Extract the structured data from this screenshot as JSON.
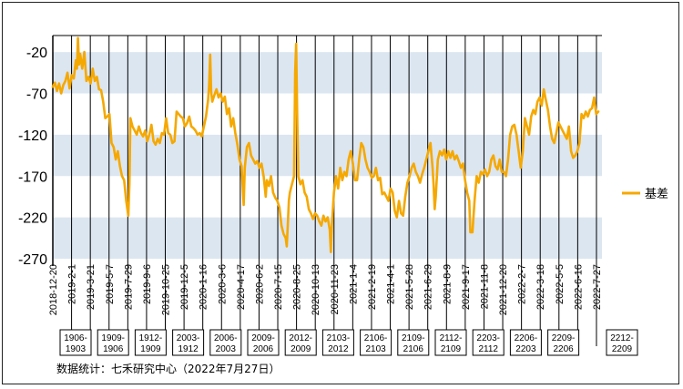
{
  "chart_data": {
    "type": "line",
    "title": "",
    "xlabel": "",
    "ylabel": "",
    "ylim": [
      -270,
      0
    ],
    "y_ticks": [
      -20,
      -70,
      -120,
      -170,
      -220,
      -270
    ],
    "x_tick_labels": [
      "2018-12-20",
      "2019-2-1",
      "2019-3-21",
      "2019-5-7",
      "2019-7-29",
      "2019-9-6",
      "2019-10-25",
      "2019-12-5",
      "2020-1-16",
      "2020-3-6",
      "2020-4-17",
      "2020-6-2",
      "2020-7-15",
      "2020-8-25",
      "2020-10-13",
      "2020-11-23",
      "2021-1-4",
      "2021-2-19",
      "2021-4-1",
      "2021-5-28",
      "2021-6-29",
      "2021-8-9",
      "2021-9-17",
      "2021-11-8",
      "2021-12-20",
      "2022-2-7",
      "2022-3-18",
      "2022-5-5",
      "2022-6-16",
      "2022-7-27"
    ],
    "bands": [
      [
        -20,
        -70
      ],
      [
        -120,
        -170
      ],
      [
        -220,
        -270
      ]
    ],
    "grid": false,
    "legend": "right",
    "series": [
      {
        "name": "基差",
        "color": "#F5A800",
        "points": [
          [
            0,
            -62
          ],
          [
            0.4,
            -57
          ],
          [
            0.8,
            -67
          ],
          [
            1.2,
            -58
          ],
          [
            1.6,
            -70
          ],
          [
            2.0,
            -60
          ],
          [
            2.4,
            -55
          ],
          [
            2.8,
            -45
          ],
          [
            3.2,
            -64
          ],
          [
            3.6,
            -48
          ],
          [
            4.0,
            -52
          ],
          [
            4.4,
            -30
          ],
          [
            4.6,
            -40
          ],
          [
            4.8,
            -3
          ],
          [
            5.0,
            -35
          ],
          [
            5.2,
            -22
          ],
          [
            5.6,
            -40
          ],
          [
            6.0,
            -20
          ],
          [
            6.4,
            -55
          ],
          [
            6.8,
            -50
          ],
          [
            7.2,
            -58
          ],
          [
            7.6,
            -40
          ],
          [
            8.0,
            -55
          ],
          [
            8.4,
            -50
          ],
          [
            8.8,
            -65
          ],
          [
            9.2,
            -66
          ],
          [
            9.6,
            -80
          ],
          [
            10.0,
            -100
          ],
          [
            10.4,
            -98
          ],
          [
            10.8,
            -95
          ],
          [
            11.2,
            -130
          ],
          [
            11.6,
            -135
          ],
          [
            12.0,
            -150
          ],
          [
            12.4,
            -140
          ],
          [
            12.8,
            -158
          ],
          [
            13.2,
            -170
          ],
          [
            13.6,
            -175
          ],
          [
            14.0,
            -200
          ],
          [
            14.4,
            -218
          ],
          [
            14.6,
            -180
          ],
          [
            14.8,
            -100
          ],
          [
            15.2,
            -110
          ],
          [
            15.6,
            -115
          ],
          [
            16.0,
            -120
          ],
          [
            16.4,
            -110
          ],
          [
            16.8,
            -118
          ],
          [
            17.2,
            -122
          ],
          [
            17.6,
            -115
          ],
          [
            18.0,
            -128
          ],
          [
            18.4,
            -120
          ],
          [
            18.8,
            -108
          ],
          [
            19.2,
            -128
          ],
          [
            19.6,
            -132
          ],
          [
            20.0,
            -125
          ],
          [
            20.4,
            -130
          ],
          [
            20.8,
            -118
          ],
          [
            21.2,
            -120
          ],
          [
            21.6,
            -100
          ],
          [
            22.0,
            -118
          ],
          [
            22.4,
            -120
          ],
          [
            22.8,
            -130
          ],
          [
            23.2,
            -128
          ],
          [
            23.6,
            -92
          ],
          [
            24.0,
            -95
          ],
          [
            24.4,
            -98
          ],
          [
            24.8,
            -100
          ],
          [
            25.2,
            -110
          ],
          [
            25.6,
            -106
          ],
          [
            26.0,
            -98
          ],
          [
            26.4,
            -110
          ],
          [
            26.8,
            -112
          ],
          [
            27.2,
            -115
          ],
          [
            27.6,
            -120
          ],
          [
            28.0,
            -118
          ],
          [
            28.4,
            -122
          ],
          [
            28.8,
            -110
          ],
          [
            29.2,
            -98
          ],
          [
            29.6,
            -78
          ],
          [
            29.8,
            -60
          ],
          [
            30.0,
            -23
          ],
          [
            30.2,
            -68
          ],
          [
            30.4,
            -80
          ],
          [
            30.8,
            -72
          ],
          [
            31.2,
            -65
          ],
          [
            31.6,
            -75
          ],
          [
            32.0,
            -70
          ],
          [
            32.4,
            -80
          ],
          [
            32.8,
            -74
          ],
          [
            33.2,
            -95
          ],
          [
            33.6,
            -88
          ],
          [
            34.0,
            -110
          ],
          [
            34.4,
            -100
          ],
          [
            34.8,
            -118
          ],
          [
            35.2,
            -132
          ],
          [
            35.6,
            -150
          ],
          [
            36.0,
            -158
          ],
          [
            36.4,
            -205
          ],
          [
            36.6,
            -160
          ],
          [
            37.0,
            -135
          ],
          [
            37.4,
            -130
          ],
          [
            37.8,
            -145
          ],
          [
            38.2,
            -150
          ],
          [
            38.6,
            -155
          ],
          [
            39.0,
            -152
          ],
          [
            39.4,
            -160
          ],
          [
            39.8,
            -155
          ],
          [
            40.2,
            -170
          ],
          [
            40.6,
            -195
          ],
          [
            40.8,
            -175
          ],
          [
            41.2,
            -182
          ],
          [
            41.6,
            -170
          ],
          [
            42.0,
            -190
          ],
          [
            42.4,
            -196
          ],
          [
            42.8,
            -200
          ],
          [
            43.2,
            -208
          ],
          [
            43.6,
            -230
          ],
          [
            44.0,
            -240
          ],
          [
            44.4,
            -245
          ],
          [
            44.6,
            -255
          ],
          [
            44.8,
            -230
          ],
          [
            45.0,
            -200
          ],
          [
            45.2,
            -190
          ],
          [
            45.6,
            -180
          ],
          [
            46.0,
            -170
          ],
          [
            46.2,
            -45
          ],
          [
            46.4,
            -10
          ],
          [
            46.6,
            -100
          ],
          [
            46.8,
            -170
          ],
          [
            47.2,
            -180
          ],
          [
            47.6,
            -175
          ],
          [
            48.0,
            -190
          ],
          [
            48.4,
            -195
          ],
          [
            48.8,
            -210
          ],
          [
            49.2,
            -215
          ],
          [
            49.6,
            -222
          ],
          [
            50.0,
            -215
          ],
          [
            50.4,
            -218
          ],
          [
            50.8,
            -225
          ],
          [
            51.2,
            -230
          ],
          [
            51.6,
            -218
          ],
          [
            52.0,
            -225
          ],
          [
            52.4,
            -220
          ],
          [
            52.8,
            -235
          ],
          [
            53.0,
            -262
          ],
          [
            53.2,
            -230
          ],
          [
            53.6,
            -190
          ],
          [
            54.0,
            -170
          ],
          [
            54.4,
            -185
          ],
          [
            54.8,
            -160
          ],
          [
            55.2,
            -175
          ],
          [
            55.6,
            -165
          ],
          [
            56.0,
            -170
          ],
          [
            56.4,
            -150
          ],
          [
            56.8,
            -140
          ],
          [
            57.2,
            -155
          ],
          [
            57.6,
            -175
          ],
          [
            58.0,
            -175
          ],
          [
            58.4,
            -150
          ],
          [
            58.8,
            -130
          ],
          [
            59.2,
            -135
          ],
          [
            59.6,
            -150
          ],
          [
            60.0,
            -160
          ],
          [
            60.4,
            -165
          ],
          [
            60.8,
            -172
          ],
          [
            61.2,
            -170
          ],
          [
            61.6,
            -160
          ],
          [
            62.0,
            -175
          ],
          [
            62.4,
            -172
          ],
          [
            62.8,
            -192
          ],
          [
            63.2,
            -190
          ],
          [
            63.6,
            -195
          ],
          [
            64.0,
            -200
          ],
          [
            64.4,
            -185
          ],
          [
            64.8,
            -190
          ],
          [
            65.2,
            -212
          ],
          [
            65.6,
            -220
          ],
          [
            66.0,
            -200
          ],
          [
            66.4,
            -215
          ],
          [
            66.8,
            -218
          ],
          [
            67.2,
            -195
          ],
          [
            67.6,
            -178
          ],
          [
            68.0,
            -170
          ],
          [
            68.4,
            -160
          ],
          [
            68.8,
            -155
          ],
          [
            69.2,
            -165
          ],
          [
            69.6,
            -170
          ],
          [
            70.0,
            -178
          ],
          [
            70.4,
            -168
          ],
          [
            70.8,
            -160
          ],
          [
            71.2,
            -150
          ],
          [
            71.6,
            -140
          ],
          [
            72.0,
            -130
          ],
          [
            72.4,
            -160
          ],
          [
            72.6,
            -180
          ],
          [
            72.8,
            -210
          ],
          [
            73.0,
            -195
          ],
          [
            73.4,
            -150
          ],
          [
            73.8,
            -140
          ],
          [
            74.2,
            -145
          ],
          [
            74.6,
            -138
          ],
          [
            75.0,
            -150
          ],
          [
            75.4,
            -140
          ],
          [
            75.8,
            -148
          ],
          [
            76.2,
            -140
          ],
          [
            76.6,
            -150
          ],
          [
            77.0,
            -145
          ],
          [
            77.4,
            -152
          ],
          [
            77.8,
            -160
          ],
          [
            78.2,
            -155
          ],
          [
            78.6,
            -175
          ],
          [
            79.0,
            -190
          ],
          [
            79.4,
            -200
          ],
          [
            79.6,
            -238
          ],
          [
            80.0,
            -238
          ],
          [
            80.4,
            -200
          ],
          [
            80.8,
            -170
          ],
          [
            81.2,
            -178
          ],
          [
            81.6,
            -165
          ],
          [
            82.0,
            -168
          ],
          [
            82.4,
            -162
          ],
          [
            82.8,
            -170
          ],
          [
            83.2,
            -165
          ],
          [
            83.6,
            -150
          ],
          [
            84.0,
            -145
          ],
          [
            84.4,
            -158
          ],
          [
            84.8,
            -162
          ],
          [
            85.2,
            -150
          ],
          [
            85.6,
            -165
          ],
          [
            86.0,
            -165
          ],
          [
            86.4,
            -170
          ],
          [
            86.8,
            -150
          ],
          [
            87.2,
            -120
          ],
          [
            87.6,
            -110
          ],
          [
            88.0,
            -108
          ],
          [
            88.4,
            -120
          ],
          [
            88.8,
            -140
          ],
          [
            89.2,
            -160
          ],
          [
            89.6,
            -140
          ],
          [
            90.0,
            -100
          ],
          [
            90.4,
            -110
          ],
          [
            90.8,
            -120
          ],
          [
            91.2,
            -98
          ],
          [
            91.6,
            -90
          ],
          [
            92.0,
            -95
          ],
          [
            92.4,
            -80
          ],
          [
            92.8,
            -75
          ],
          [
            93.2,
            -85
          ],
          [
            93.6,
            -65
          ],
          [
            94.0,
            -78
          ],
          [
            94.4,
            -90
          ],
          [
            94.8,
            -110
          ],
          [
            95.2,
            -125
          ],
          [
            95.6,
            -130
          ],
          [
            96.0,
            -118
          ],
          [
            96.4,
            -105
          ],
          [
            96.8,
            -110
          ],
          [
            97.2,
            -115
          ],
          [
            97.6,
            -120
          ],
          [
            98.0,
            -125
          ],
          [
            98.4,
            -110
          ],
          [
            98.8,
            -140
          ],
          [
            99.2,
            -148
          ],
          [
            99.6,
            -145
          ],
          [
            100.0,
            -140
          ],
          [
            100.4,
            -130
          ],
          [
            100.8,
            -95
          ],
          [
            101.2,
            -100
          ],
          [
            101.6,
            -92
          ],
          [
            102.0,
            -98
          ],
          [
            102.4,
            -90
          ],
          [
            102.8,
            -88
          ],
          [
            103.2,
            -75
          ],
          [
            103.6,
            -95
          ],
          [
            104.0,
            -92
          ]
        ]
      }
    ]
  },
  "contracts": [
    "1906-1903",
    "1909-1906",
    "1912-1909",
    "2003-1912",
    "2006-2003",
    "2009-2006",
    "2012-2009",
    "2103-2012",
    "2106-2103",
    "2109-2106",
    "2112-2109",
    "2203-2112",
    "2206-2203",
    "2209-2206",
    "2212-2209"
  ],
  "source": "数据统计：七禾研究中心（2022年7月27日）"
}
